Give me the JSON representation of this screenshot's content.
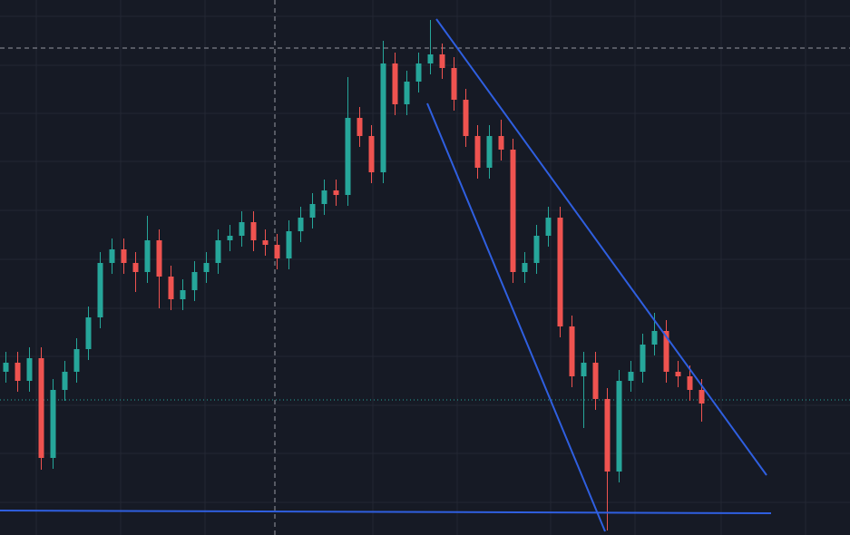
{
  "chart_data": {
    "type": "candlestick",
    "categories": [
      null,
      null,
      null,
      null,
      null,
      null,
      null,
      null,
      null,
      null,
      null,
      null,
      null,
      null,
      null,
      null,
      null,
      null,
      null,
      null,
      null,
      null,
      null,
      null,
      null,
      null,
      null,
      null,
      null,
      null,
      null,
      null,
      null,
      null,
      null,
      null,
      null,
      null,
      null,
      null,
      null,
      null,
      null,
      null,
      null,
      null,
      null,
      null,
      null,
      null,
      null,
      null,
      null,
      null,
      null,
      null,
      null,
      null,
      null,
      null
    ],
    "open": [
      180,
      190,
      170,
      195,
      85,
      160,
      180,
      205,
      240,
      300,
      315,
      300,
      290,
      325,
      285,
      260,
      270,
      290,
      300,
      325,
      330,
      345,
      325,
      320,
      305,
      335,
      350,
      365,
      380,
      375,
      460,
      440,
      400,
      520,
      475,
      500,
      520,
      530,
      515,
      480,
      440,
      405,
      440,
      425,
      290,
      300,
      330,
      350,
      230,
      175,
      190,
      150,
      70,
      170,
      180,
      210,
      225,
      180,
      175,
      160
    ],
    "high": [
      202,
      202,
      207,
      207,
      172,
      192,
      217,
      252,
      312,
      327,
      327,
      312,
      352,
      337,
      297,
      282,
      302,
      312,
      337,
      342,
      357,
      357,
      337,
      332,
      347,
      362,
      377,
      392,
      392,
      505,
      472,
      452,
      545,
      532,
      512,
      532,
      568,
      542,
      527,
      492,
      452,
      452,
      458,
      437,
      312,
      342,
      362,
      362,
      242,
      202,
      202,
      162,
      182,
      192,
      222,
      245,
      237,
      192,
      187,
      172
    ],
    "low": [
      168,
      158,
      158,
      72,
      73,
      148,
      168,
      193,
      228,
      288,
      288,
      268,
      278,
      250,
      248,
      248,
      258,
      278,
      288,
      313,
      318,
      313,
      308,
      293,
      293,
      323,
      338,
      353,
      363,
      363,
      428,
      388,
      388,
      463,
      463,
      488,
      508,
      503,
      468,
      428,
      393,
      393,
      413,
      278,
      278,
      288,
      318,
      218,
      163,
      118,
      138,
      5,
      58,
      158,
      168,
      198,
      168,
      163,
      148,
      125
    ],
    "close": [
      190,
      170,
      195,
      85,
      160,
      180,
      205,
      240,
      300,
      315,
      300,
      290,
      325,
      285,
      260,
      270,
      290,
      300,
      325,
      330,
      345,
      325,
      320,
      305,
      335,
      350,
      365,
      380,
      375,
      460,
      440,
      400,
      520,
      475,
      500,
      520,
      530,
      515,
      480,
      440,
      405,
      440,
      425,
      290,
      300,
      330,
      350,
      230,
      175,
      190,
      150,
      70,
      170,
      180,
      210,
      225,
      180,
      175,
      160,
      145
    ],
    "ylim": [
      0,
      590
    ],
    "up_color": "#26a69a",
    "down_color": "#ef5350"
  }
}
